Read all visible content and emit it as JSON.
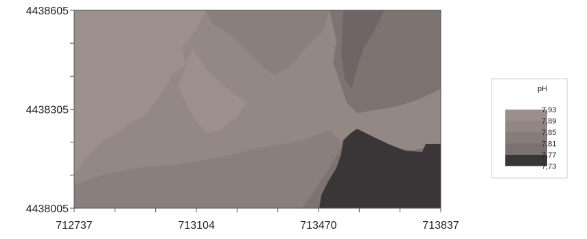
{
  "chart_data": {
    "type": "heatmap",
    "title": "",
    "xlabel": "",
    "ylabel": "",
    "xlim": [
      712737,
      713837
    ],
    "ylim": [
      4438005,
      4438605
    ],
    "x_ticks": [
      "712737",
      "713104",
      "713470",
      "713837"
    ],
    "y_ticks": [
      "4438005",
      "4438305",
      "4438605"
    ],
    "grid": false,
    "legend": {
      "title": "pH",
      "placement": "right",
      "levels": [
        "7,93",
        "7,89",
        "7,85",
        "7,81",
        "7,77",
        "7,73"
      ],
      "colors": [
        "#9b8e8b",
        "#928683",
        "#877c7a",
        "#7b7170",
        "#6c6362",
        "#3a3638"
      ]
    }
  }
}
